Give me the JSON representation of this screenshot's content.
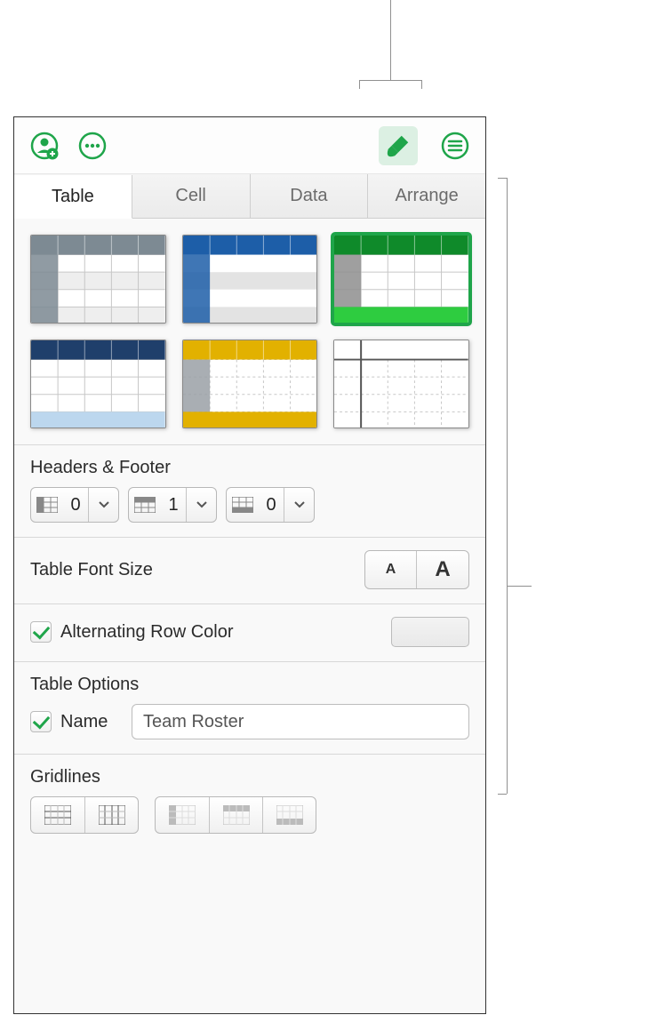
{
  "toolbar": {
    "collaborate_icon": "collaborate",
    "more_icon": "more",
    "format_icon": "format-brush",
    "organize_icon": "organize"
  },
  "tabs": [
    "Table",
    "Cell",
    "Data",
    "Arrange"
  ],
  "active_tab": 0,
  "styles": [
    {
      "name": "plain-gray",
      "header": "#7d8a93",
      "side": "#7d8a93",
      "body": "#ffffff",
      "grid": "#c7c7c7",
      "alt": "#eeeeee",
      "footer": null,
      "selected": false
    },
    {
      "name": "blue-left",
      "header": "#1d5ea8",
      "side": "#1d5ea8",
      "body": "#ffffff",
      "grid": null,
      "alt": "#e3e3e3",
      "footer": null,
      "selected": false
    },
    {
      "name": "green",
      "header": "#0f8a2a",
      "side": "#8e8e8e",
      "body": "#ffffff",
      "grid": "#c7c7c7",
      "alt": null,
      "footer": "#2ecc40",
      "selected": true
    },
    {
      "name": "blue",
      "header": "#1f3f6b",
      "side": "#ffffff",
      "body": "#ffffff",
      "grid": "#c7c7c7",
      "alt": null,
      "footer": "#bcd7ee",
      "selected": false
    },
    {
      "name": "gold",
      "header": "#e2b100",
      "side": "#9aa0a6",
      "body": "#ffffff",
      "grid": "#c7c7c7",
      "alt": null,
      "footer": "#e2b100",
      "selected": false,
      "dashed": true
    },
    {
      "name": "minimal",
      "header": "#ffffff",
      "side": "#ffffff",
      "body": "#ffffff",
      "grid": "#c7c7c7",
      "alt": null,
      "footer": null,
      "selected": false,
      "dashed": true,
      "hline": "#555555"
    }
  ],
  "headers_footer": {
    "label": "Headers & Footer",
    "header_cols": 0,
    "header_rows": 1,
    "footer_rows": 0
  },
  "font_size": {
    "label": "Table Font Size",
    "small": "A",
    "large": "A"
  },
  "alt_row": {
    "label": "Alternating Row Color",
    "checked": true,
    "swatch": "#ececec"
  },
  "options": {
    "label": "Table Options",
    "name_label": "Name",
    "name_checked": true,
    "name_value": "Team Roster"
  },
  "gridlines": {
    "label": "Gridlines"
  },
  "colors": {
    "accent": "#1fa54a",
    "accent_bg": "#dcf0e3",
    "border": "#b8b8b8"
  }
}
